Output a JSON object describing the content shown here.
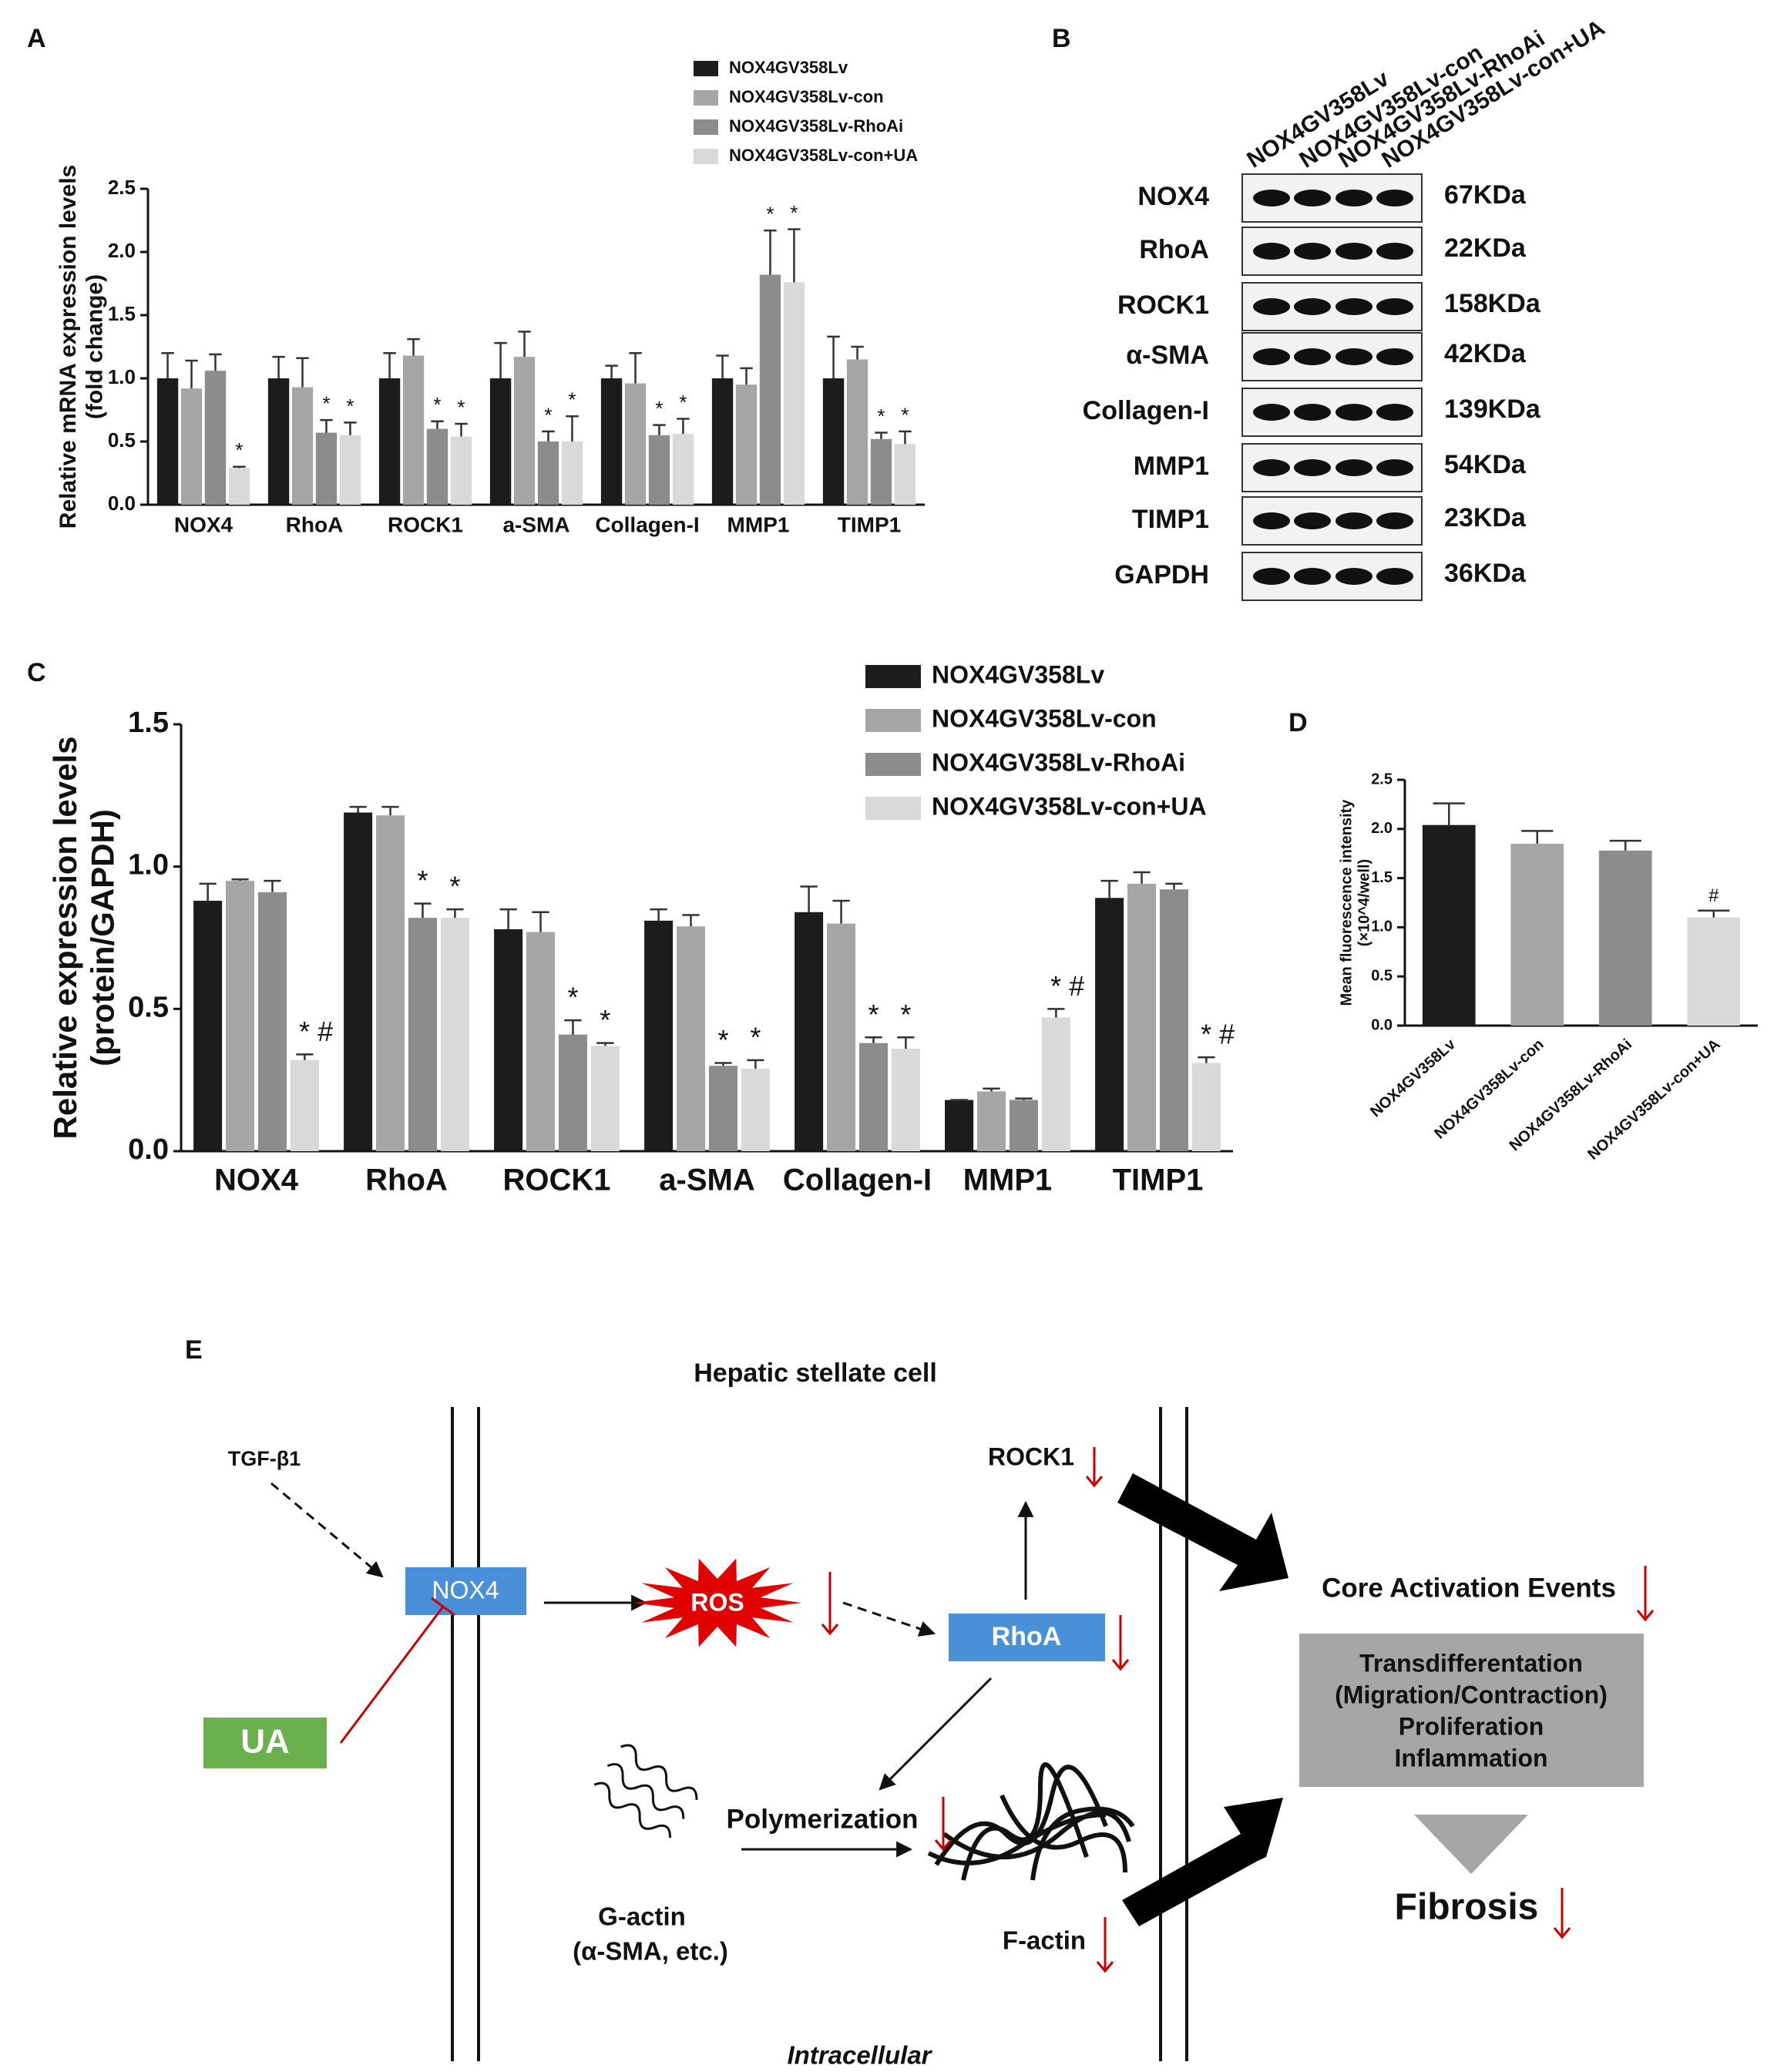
{
  "chart_data": [
    {
      "panel": "A",
      "type": "bar",
      "ylabel": [
        "Relative mRNA expression levels",
        "(fold change)"
      ],
      "categories": [
        "NOX4",
        "RhoA",
        "ROCK1",
        "a-SMA",
        "Collagen-I",
        "MMP1",
        "TIMP1"
      ],
      "series": [
        {
          "name": "NOX4GV358Lv",
          "color": "#1c1c1c",
          "values": [
            1.0,
            1.0,
            1.0,
            1.0,
            1.0,
            1.0,
            1.0
          ],
          "errors": [
            0.2,
            0.17,
            0.2,
            0.28,
            0.1,
            0.18,
            0.33
          ]
        },
        {
          "name": "NOX4GV358Lv-con",
          "color": "#a6a6a6",
          "values": [
            0.92,
            0.93,
            1.18,
            1.17,
            0.96,
            0.95,
            1.15
          ],
          "errors": [
            0.22,
            0.23,
            0.13,
            0.2,
            0.24,
            0.13,
            0.1
          ]
        },
        {
          "name": "NOX4GV358Lv-RhoAi",
          "color": "#8c8c8c",
          "values": [
            1.06,
            0.57,
            0.6,
            0.5,
            0.55,
            1.82,
            0.52
          ],
          "errors": [
            0.13,
            0.1,
            0.06,
            0.08,
            0.08,
            0.35,
            0.05
          ],
          "annotations": [
            null,
            "*",
            "*",
            "*",
            "*",
            "*",
            "*"
          ]
        },
        {
          "name": "NOX4GV358Lv-con+UA",
          "color": "#d9d9d9",
          "values": [
            0.29,
            0.55,
            0.54,
            0.5,
            0.56,
            1.76,
            0.48
          ],
          "errors": [
            0.01,
            0.1,
            0.1,
            0.2,
            0.12,
            0.42,
            0.1
          ],
          "annotations": [
            "*",
            "*",
            "*",
            "*",
            "*",
            "*",
            "*"
          ]
        }
      ],
      "ylim": [
        0,
        2.5
      ],
      "yticks": [
        {
          "value": 0,
          "label": "0.0"
        },
        0.5,
        {
          "value": 1,
          "label": "1.0"
        },
        1.5,
        {
          "value": 2,
          "label": "2.0"
        },
        2.5
      ]
    },
    {
      "panel": "C",
      "type": "bar",
      "ylabel": [
        "Relative expression levels",
        "(protein/GAPDH)"
      ],
      "categories": [
        "NOX4",
        "RhoA",
        "ROCK1",
        "a-SMA",
        "Collagen-I",
        "MMP1",
        "TIMP1"
      ],
      "series": [
        {
          "name": "NOX4GV358Lv",
          "color": "#1c1c1c",
          "values": [
            0.88,
            1.19,
            0.78,
            0.81,
            0.84,
            0.18,
            0.89
          ],
          "errors": [
            0.06,
            0.02,
            0.07,
            0.04,
            0.09,
            0.0,
            0.06
          ]
        },
        {
          "name": "NOX4GV358Lv-con",
          "color": "#a6a6a6",
          "values": [
            0.95,
            1.18,
            0.77,
            0.79,
            0.8,
            0.21,
            0.94
          ],
          "errors": [
            0.005,
            0.03,
            0.07,
            0.04,
            0.08,
            0.01,
            0.04
          ]
        },
        {
          "name": "NOX4GV358Lv-RhoAi",
          "color": "#8c8c8c",
          "values": [
            0.91,
            0.82,
            0.41,
            0.3,
            0.38,
            0.18,
            0.92
          ],
          "errors": [
            0.04,
            0.05,
            0.05,
            0.01,
            0.02,
            0.005,
            0.02
          ],
          "annotations": [
            null,
            "*",
            "*",
            "*",
            "*",
            null,
            null
          ]
        },
        {
          "name": "NOX4GV358Lv-con+UA",
          "color": "#d9d9d9",
          "values": [
            0.32,
            0.82,
            0.37,
            0.29,
            0.36,
            0.47,
            0.31
          ],
          "errors": [
            0.02,
            0.03,
            0.01,
            0.03,
            0.04,
            0.03,
            0.02
          ],
          "annotations": [
            "* #",
            "*",
            "*",
            "*",
            "*",
            "* #",
            "* #"
          ]
        }
      ],
      "ylim": [
        0,
        1.5
      ],
      "yticks": [
        {
          "value": 0,
          "label": "0.0"
        },
        0.5,
        {
          "value": 1,
          "label": "1.0"
        },
        1.5
      ]
    },
    {
      "panel": "D",
      "type": "bar",
      "ylabel": [
        "Mean fluorescence intensity",
        "(×10^4/well)"
      ],
      "categories": [
        "NOX4GV358Lv",
        "NOX4GV358Lv-con",
        "NOX4GV358Lv-RhoAi",
        "NOX4GV358Lv-con+UA"
      ],
      "values": [
        2.04,
        1.85,
        1.78,
        1.1
      ],
      "errors": [
        0.22,
        0.13,
        0.1,
        0.07
      ],
      "colors": [
        "#1c1c1c",
        "#a6a6a6",
        "#8c8c8c",
        "#d9d9d9"
      ],
      "annotations": [
        null,
        null,
        null,
        "#"
      ],
      "ylim": [
        0,
        2.5
      ],
      "yticks": [
        {
          "value": 0,
          "label": "0.0"
        },
        0.5,
        {
          "value": 1,
          "label": "1.0"
        },
        1.5,
        {
          "value": 2,
          "label": "2.0"
        },
        2.5
      ]
    }
  ],
  "blot": {
    "panel": "B",
    "lanes": [
      "NOX4GV358Lv",
      "NOX4GV358Lv-con",
      "NOX4GV358Lv-RhoAi",
      "NOX4GV358Lv-con+UA"
    ],
    "rows": [
      {
        "protein": "NOX4",
        "size": "67KDa"
      },
      {
        "protein": "RhoA",
        "size": "22KDa"
      },
      {
        "protein": "ROCK1",
        "size": "158KDa"
      },
      {
        "protein": "α-SMA",
        "size": "42KDa"
      },
      {
        "protein": "Collagen-I",
        "size": "139KDa"
      },
      {
        "protein": "MMP1",
        "size": "54KDa"
      },
      {
        "protein": "TIMP1",
        "size": "23KDa"
      },
      {
        "protein": "GAPDH",
        "size": "36KDa"
      }
    ]
  },
  "diagram": {
    "panel": "E",
    "title": "Hepatic stellate cell",
    "location": "Intracellular",
    "tgf": "TGF-β1",
    "nox4": "NOX4",
    "ua": "UA",
    "ros": "ROS",
    "rhoa": "RhoA",
    "rock1": "ROCK1",
    "polymerization": "Polymerization",
    "gactin": [
      "G-actin",
      "(α-SMA, etc.)"
    ],
    "factin": "F-actin",
    "core": "Core Activation Events",
    "events": [
      "Transdifferentation",
      "(Migration/Contraction)",
      "Proliferation",
      "Inflammation"
    ],
    "fibrosis": "Fibrosis"
  }
}
